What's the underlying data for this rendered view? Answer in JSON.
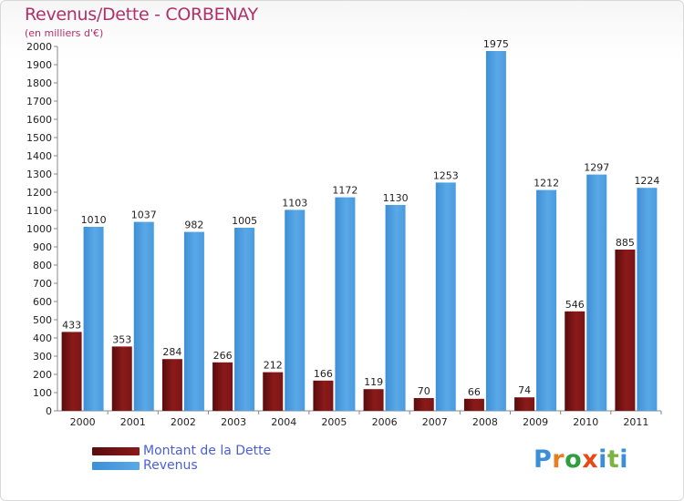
{
  "title": "Revenus/Dette - CORBENAY",
  "subtitle": "(en milliers d'€)",
  "colors": {
    "debt": "#8b1a1a",
    "debt_dark": "#5a0c0c",
    "revenue": "#5aa8e6",
    "revenue_dark": "#3d8fd6",
    "title": "#b0306a",
    "legend_text": "#4a5fd6"
  },
  "legend": {
    "debt_label": "Montant de la Dette",
    "revenue_label": "Revenus"
  },
  "logo": {
    "text": "Proxiti",
    "letter_colors": [
      "#3b8fd9",
      "#e67e22",
      "#2e9e3e",
      "#e64a19",
      "#3b8fd9",
      "#7cb342",
      "#3b8fd9"
    ]
  },
  "chart_data": {
    "type": "bar",
    "title": "Revenus/Dette - CORBENAY",
    "subtitle": "(en milliers d'€)",
    "categories": [
      "2000",
      "2001",
      "2002",
      "2003",
      "2004",
      "2005",
      "2006",
      "2007",
      "2008",
      "2009",
      "2010",
      "2011"
    ],
    "series": [
      {
        "name": "Montant de la Dette",
        "values": [
          433,
          353,
          284,
          266,
          212,
          166,
          119,
          70,
          66,
          74,
          546,
          885
        ]
      },
      {
        "name": "Revenus",
        "values": [
          1010,
          1037,
          982,
          1005,
          1103,
          1172,
          1130,
          1253,
          1975,
          1212,
          1297,
          1224
        ]
      }
    ],
    "ylim": [
      0,
      2000
    ],
    "ytick_step": 100,
    "yticks": [
      "0",
      "100",
      "200",
      "300",
      "400",
      "500",
      "600",
      "700",
      "800",
      "900",
      "1000",
      "1100",
      "1200",
      "1300",
      "1400",
      "1500",
      "1600",
      "1700",
      "1800",
      "1900",
      "2000"
    ],
    "grid": false,
    "legend_position": "bottom-left"
  }
}
